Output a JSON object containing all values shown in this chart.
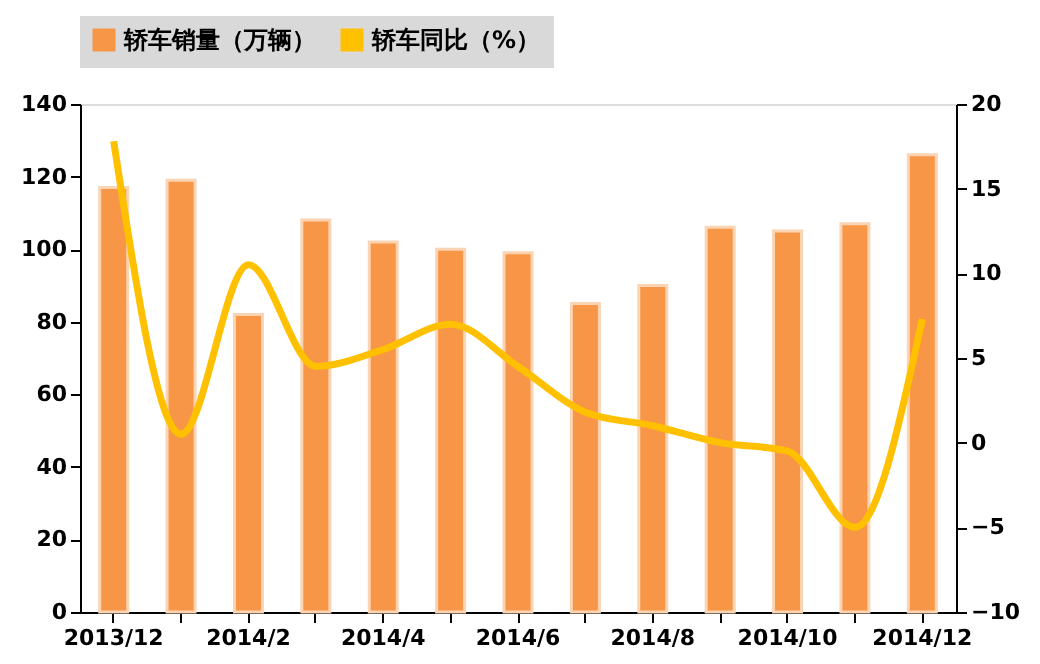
{
  "chart_data": {
    "type": "bar",
    "categories": [
      "2013/12",
      null,
      "2014/2",
      null,
      "2014/4",
      null,
      "2014/6",
      null,
      "2014/8",
      null,
      "2014/10",
      null,
      "2014/12"
    ],
    "series": [
      {
        "name": "轿车销量（万辆）",
        "color": "#f79646",
        "values": [
          117,
          119,
          82,
          108,
          102,
          100,
          99,
          85,
          90,
          106,
          105,
          107,
          126
        ]
      },
      {
        "name": "轿车同比（%）",
        "type": "line",
        "axis": "y2",
        "color": "#ffc000",
        "values": [
          17.8,
          0.5,
          10.5,
          4.5,
          5.5,
          7,
          4.5,
          1.8,
          1,
          0,
          -0.5,
          -5,
          7.3
        ]
      }
    ],
    "ylim": [
      0,
      140
    ],
    "yticks": [
      0,
      20,
      40,
      60,
      80,
      100,
      120,
      140
    ],
    "y2lim": [
      -10,
      20
    ],
    "y2ticks": [
      -10,
      -5,
      0,
      5,
      10,
      15,
      20
    ],
    "grid": false,
    "legend": "top left",
    "line_style": "solid",
    "marker": "none"
  }
}
